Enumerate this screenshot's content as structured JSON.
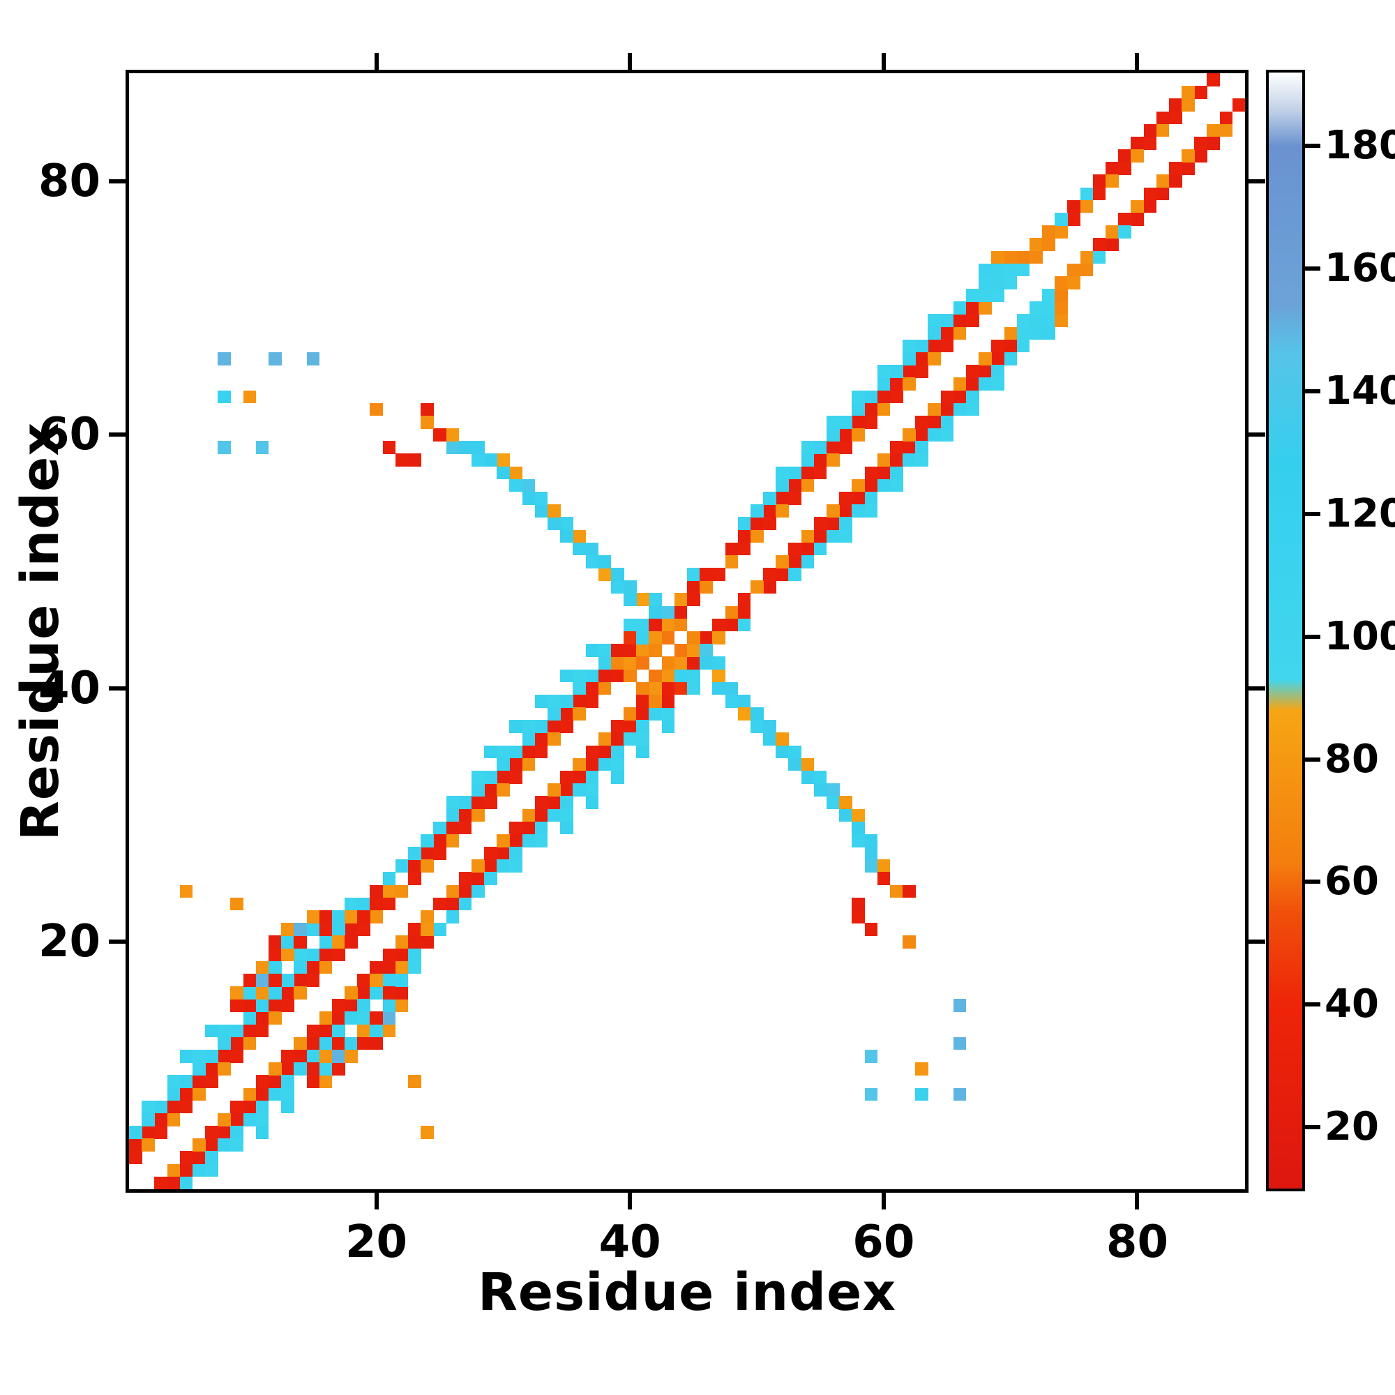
{
  "chart_data": {
    "type": "heatmap",
    "title": "",
    "xlabel": "Residue index",
    "ylabel": "Residue index",
    "x_range": [
      0.5,
      88.5
    ],
    "y_range": [
      0.5,
      88.5
    ],
    "n_cells": 88,
    "x_ticks": [
      20,
      40,
      60,
      80
    ],
    "y_ticks": [
      20,
      40,
      60,
      80
    ],
    "grid": false,
    "symmetric": true,
    "frame_color": "#000000",
    "background": "#ffffff",
    "colorbar": {
      "range": [
        10,
        192
      ],
      "ticks": [
        20,
        40,
        60,
        80,
        100,
        120,
        140,
        160,
        180
      ],
      "stops": [
        [
          10,
          "#dd170f"
        ],
        [
          40,
          "#ee2508"
        ],
        [
          55,
          "#f0500a"
        ],
        [
          63,
          "#f47e0e"
        ],
        [
          88,
          "#f6a513"
        ],
        [
          93,
          "#41d6ee"
        ],
        [
          128,
          "#35cfee"
        ],
        [
          146,
          "#55c4e8"
        ],
        [
          154,
          "#6ba3d8"
        ],
        [
          180,
          "#6a92cf"
        ],
        [
          186,
          "#c3d2e8"
        ],
        [
          192,
          "#ffffff"
        ]
      ]
    },
    "bands": [
      {
        "from": 1,
        "to": 20,
        "step": 1,
        "offset": 3,
        "value": 25
      },
      {
        "from": 23,
        "to": 44,
        "step": 1,
        "offset": 3,
        "value": 25
      },
      {
        "from": 48,
        "to": 84,
        "step": 1,
        "offset": 3,
        "value": 25
      },
      {
        "from": 2,
        "to": 84,
        "step": 2,
        "offset": 2,
        "value": 75
      },
      {
        "from": 1,
        "to": 85,
        "step": 2,
        "offset": 2,
        "value": 32
      },
      {
        "from": 1,
        "to": 41,
        "step": 1,
        "offset": 4,
        "value": 112
      },
      {
        "from": 49,
        "to": 67,
        "step": 1,
        "offset": 4,
        "value": 112
      },
      {
        "from": 2,
        "to": 18,
        "step": 2,
        "offset": 5,
        "value": 104
      },
      {
        "from": 26,
        "to": 40,
        "step": 2,
        "offset": 5,
        "value": 104
      },
      {
        "from": 52,
        "to": 64,
        "step": 2,
        "offset": 5,
        "value": 104
      },
      {
        "from": 5,
        "to": 15,
        "step": 2,
        "offset": 6,
        "value": 118
      },
      {
        "from": 29,
        "to": 37,
        "step": 2,
        "offset": 6,
        "value": 118
      }
    ],
    "points": [
      [
        9,
        15,
        30
      ],
      [
        10,
        15,
        25
      ],
      [
        9,
        16,
        78
      ],
      [
        10,
        16,
        104
      ],
      [
        10,
        17,
        30
      ],
      [
        11,
        16,
        78
      ],
      [
        11,
        17,
        150
      ],
      [
        12,
        17,
        30
      ],
      [
        11,
        18,
        78
      ],
      [
        12,
        18,
        112
      ],
      [
        12,
        19,
        30
      ],
      [
        13,
        19,
        78
      ],
      [
        12,
        20,
        25
      ],
      [
        13,
        20,
        112
      ],
      [
        14,
        20,
        30
      ],
      [
        13,
        21,
        78
      ],
      [
        14,
        21,
        150
      ],
      [
        15,
        21,
        112
      ],
      [
        16,
        21,
        30
      ],
      [
        15,
        22,
        78
      ],
      [
        16,
        22,
        25
      ],
      [
        17,
        22,
        112
      ],
      [
        17,
        20,
        78
      ],
      [
        18,
        20,
        25
      ],
      [
        18,
        22,
        78
      ],
      [
        19,
        22,
        30
      ],
      [
        19,
        23,
        112
      ],
      [
        20,
        23,
        30
      ],
      [
        20,
        24,
        25
      ],
      [
        21,
        24,
        78
      ],
      [
        9,
        23,
        75
      ],
      [
        5,
        24,
        78
      ],
      [
        37,
        40,
        30
      ],
      [
        38,
        40,
        70
      ],
      [
        38,
        41,
        25
      ],
      [
        38,
        42,
        112
      ],
      [
        39,
        41,
        30
      ],
      [
        39,
        42,
        70
      ],
      [
        39,
        43,
        25
      ],
      [
        40,
        42,
        78
      ],
      [
        40,
        43,
        30
      ],
      [
        40,
        44,
        45
      ],
      [
        41,
        43,
        78
      ],
      [
        41,
        44,
        112
      ],
      [
        41,
        45,
        108
      ],
      [
        42,
        44,
        78
      ],
      [
        42,
        45,
        25
      ],
      [
        43,
        45,
        78
      ],
      [
        44,
        46,
        25
      ],
      [
        44,
        47,
        78
      ],
      [
        45,
        47,
        30
      ],
      [
        45,
        48,
        25
      ],
      [
        46,
        48,
        70
      ],
      [
        40,
        41,
        68
      ],
      [
        41,
        42,
        62
      ],
      [
        42,
        43,
        70
      ],
      [
        43,
        44,
        62
      ],
      [
        44,
        45,
        70
      ],
      [
        36,
        40,
        104
      ],
      [
        37,
        41,
        112
      ],
      [
        45,
        49,
        104
      ],
      [
        46,
        49,
        30
      ],
      [
        67,
        71,
        104
      ],
      [
        68,
        71,
        104
      ],
      [
        68,
        72,
        110
      ],
      [
        68,
        73,
        112
      ],
      [
        69,
        71,
        100
      ],
      [
        69,
        72,
        106
      ],
      [
        69,
        73,
        110
      ],
      [
        69,
        74,
        75
      ],
      [
        70,
        72,
        100
      ],
      [
        70,
        73,
        104
      ],
      [
        70,
        74,
        70
      ],
      [
        71,
        73,
        100
      ],
      [
        71,
        74,
        66
      ],
      [
        72,
        74,
        70
      ],
      [
        72,
        75,
        75
      ],
      [
        73,
        75,
        70
      ],
      [
        73,
        76,
        70
      ],
      [
        74,
        77,
        104
      ],
      [
        76,
        79,
        104
      ],
      [
        84,
        87,
        75
      ],
      [
        86,
        88,
        30
      ],
      [
        43,
        46,
        140
      ],
      [
        42,
        46,
        130
      ],
      [
        42,
        47,
        112
      ],
      [
        41,
        47,
        85
      ],
      [
        40,
        47,
        130
      ],
      [
        40,
        48,
        132
      ],
      [
        39,
        48,
        112
      ],
      [
        39,
        49,
        130
      ],
      [
        38,
        49,
        85
      ],
      [
        38,
        50,
        130
      ],
      [
        37,
        50,
        112
      ],
      [
        37,
        51,
        132
      ],
      [
        36,
        51,
        130
      ],
      [
        36,
        52,
        80
      ],
      [
        35,
        52,
        130
      ],
      [
        35,
        53,
        112
      ],
      [
        34,
        53,
        132
      ],
      [
        34,
        54,
        80
      ],
      [
        33,
        54,
        130
      ],
      [
        33,
        55,
        112
      ],
      [
        32,
        55,
        130
      ],
      [
        32,
        56,
        140
      ],
      [
        31,
        56,
        112
      ],
      [
        31,
        57,
        80
      ],
      [
        30,
        57,
        130
      ],
      [
        30,
        58,
        85
      ],
      [
        29,
        58,
        130
      ],
      [
        28,
        58,
        112
      ],
      [
        28,
        59,
        130
      ],
      [
        27,
        59,
        132
      ],
      [
        26,
        59,
        140
      ],
      [
        26,
        60,
        80
      ],
      [
        25,
        60,
        30
      ],
      [
        24,
        61,
        75
      ],
      [
        24,
        62,
        25
      ],
      [
        23,
        58,
        25
      ],
      [
        22,
        58,
        30
      ],
      [
        21,
        59,
        30
      ],
      [
        20,
        62,
        70
      ],
      [
        8,
        59,
        145
      ],
      [
        11,
        59,
        145
      ],
      [
        8,
        63,
        120
      ],
      [
        10,
        63,
        78
      ],
      [
        8,
        66,
        150
      ],
      [
        12,
        66,
        150
      ],
      [
        15,
        66,
        150
      ]
    ]
  }
}
